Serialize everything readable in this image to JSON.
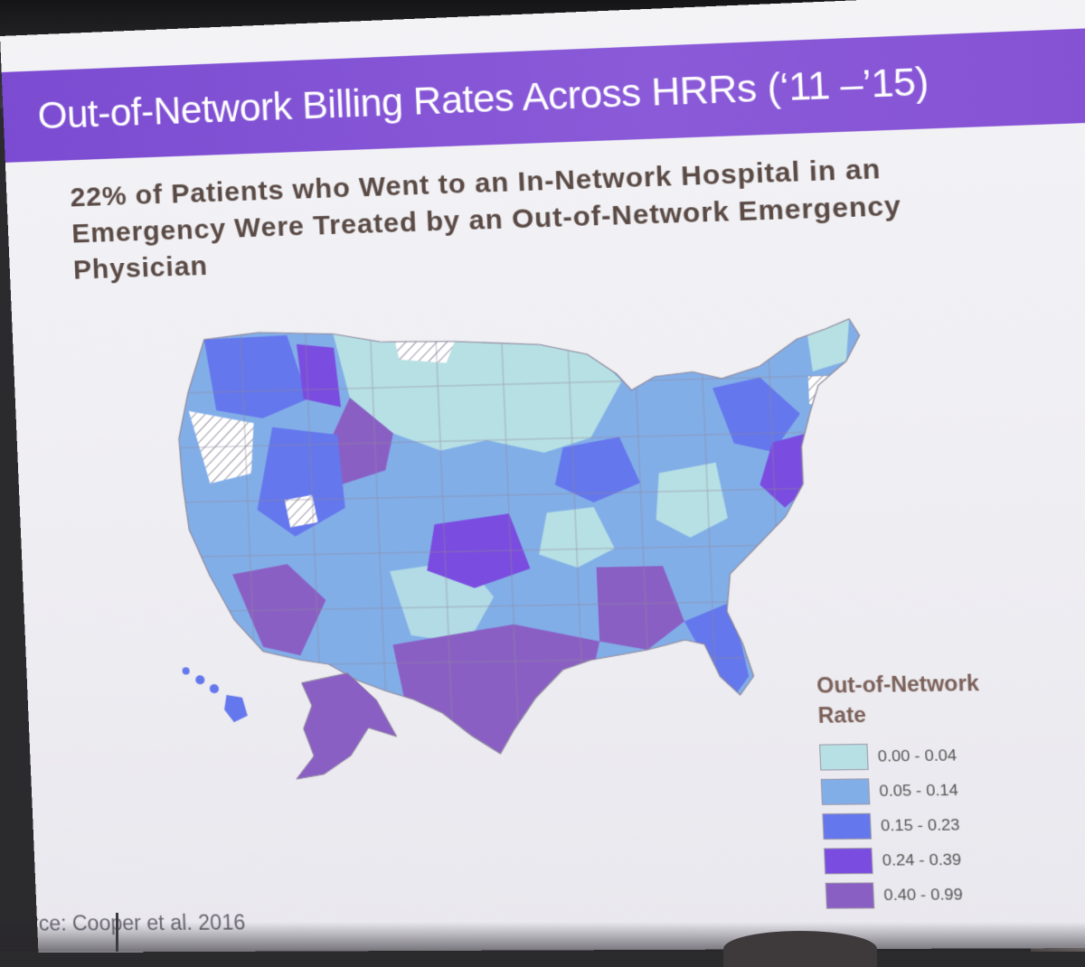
{
  "slide": {
    "title": "Out-of-Network Billing Rates Across HRRs (‘11 –’15)",
    "subtitle": "22% of Patients who Went to an In-Network Hospital in an Emergency Were Treated by an Out-of-Network Emergency Physician",
    "source": "rce: Cooper et al. 2016"
  },
  "legend": {
    "title_line1": "Out-of-Network",
    "title_line2": "Rate",
    "items": [
      {
        "label": "0.00 - 0.04",
        "color": "#b7e0e4"
      },
      {
        "label": "0.05 - 0.14",
        "color": "#82aee8"
      },
      {
        "label": "0.15 - 0.23",
        "color": "#6477ec"
      },
      {
        "label": "0.24 - 0.39",
        "color": "#7a4cdf"
      },
      {
        "label": "0.40 - 0.99",
        "color": "#8a5fc4"
      }
    ]
  },
  "map": {
    "no_data_style": "hatched",
    "border_color": "#8f8a9c"
  }
}
